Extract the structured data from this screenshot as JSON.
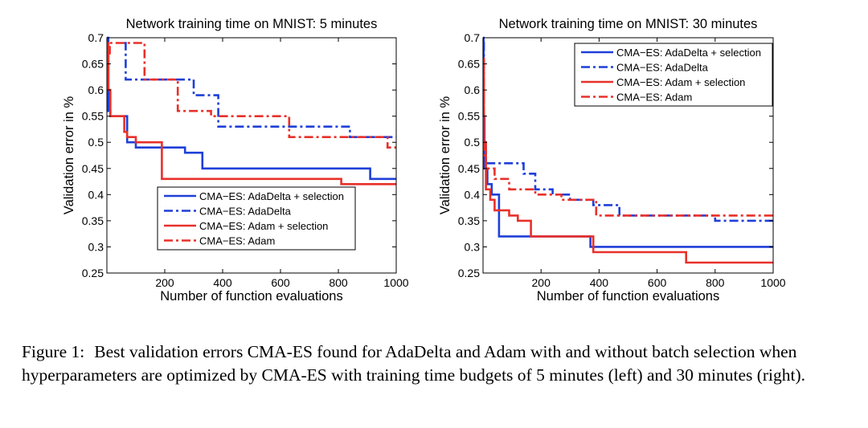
{
  "chart_data": [
    {
      "type": "line",
      "title": "Network training time on MNIST: 5 minutes",
      "xlabel": "Number of function evaluations",
      "ylabel": "Validation error in %",
      "xlim": [
        0,
        1000
      ],
      "ylim": [
        0.25,
        0.7
      ],
      "xticks": [
        200,
        400,
        600,
        800,
        1000
      ],
      "xtick_labels": [
        "200",
        "400",
        "600",
        "800",
        "1000"
      ],
      "yticks": [
        0.25,
        0.3,
        0.35,
        0.4,
        0.45,
        0.5,
        0.55,
        0.6,
        0.65,
        0.7
      ],
      "ytick_labels": [
        "0.25",
        "0.3",
        "0.35",
        "0.4",
        "0.45",
        "0.5",
        "0.55",
        "0.6",
        "0.65",
        "0.7"
      ],
      "grid": false,
      "legend_position": "lower-middle",
      "series": [
        {
          "name": "CMA−ES: AdaDelta + selection",
          "color": "#1f3fd8",
          "style": "solid",
          "x": [
            0,
            5,
            12,
            20,
            70,
            100,
            270,
            330,
            910,
            1000
          ],
          "y": [
            0.7,
            0.56,
            0.55,
            0.55,
            0.5,
            0.49,
            0.48,
            0.45,
            0.43,
            0.43
          ]
        },
        {
          "name": "CMA−ES: AdaDelta",
          "color": "#1f3fd8",
          "style": "dashdot",
          "x": [
            60,
            65,
            300,
            385,
            840,
            1000
          ],
          "y": [
            0.69,
            0.62,
            0.59,
            0.53,
            0.51,
            0.51
          ]
        },
        {
          "name": "CMA−ES: Adam + selection",
          "color": "#e8302a",
          "style": "solid",
          "x": [
            0,
            5,
            12,
            60,
            70,
            100,
            190,
            810,
            1000
          ],
          "y": [
            0.69,
            0.6,
            0.55,
            0.52,
            0.51,
            0.5,
            0.43,
            0.42,
            0.42
          ]
        },
        {
          "name": "CMA−ES: Adam",
          "color": "#e8302a",
          "style": "dashdot",
          "x": [
            5,
            10,
            130,
            245,
            360,
            630,
            970,
            1000
          ],
          "y": [
            0.67,
            0.69,
            0.62,
            0.56,
            0.55,
            0.51,
            0.49,
            0.49
          ]
        }
      ]
    },
    {
      "type": "line",
      "title": "Network training time on MNIST: 30 minutes",
      "xlabel": "Number of function evaluations",
      "ylabel": "Validation error in %",
      "xlim": [
        0,
        1000
      ],
      "ylim": [
        0.25,
        0.7
      ],
      "xticks": [
        200,
        400,
        600,
        800,
        1000
      ],
      "xtick_labels": [
        "200",
        "400",
        "600",
        "800",
        "1000"
      ],
      "yticks": [
        0.25,
        0.3,
        0.35,
        0.4,
        0.45,
        0.5,
        0.55,
        0.6,
        0.65,
        0.7
      ],
      "ytick_labels": [
        "0.25",
        "0.3",
        "0.35",
        "0.4",
        "0.45",
        "0.5",
        "0.55",
        "0.6",
        "0.65",
        "0.7"
      ],
      "grid": false,
      "legend_position": "top-right",
      "series": [
        {
          "name": "CMA−ES: AdaDelta + selection",
          "color": "#1f3fd8",
          "style": "solid",
          "x": [
            0,
            2,
            5,
            15,
            30,
            55,
            370,
            1000
          ],
          "y": [
            0.7,
            0.55,
            0.45,
            0.42,
            0.4,
            0.32,
            0.3,
            0.3
          ]
        },
        {
          "name": "CMA−ES: AdaDelta",
          "color": "#1f3fd8",
          "style": "dashdot",
          "x": [
            0,
            3,
            10,
            60,
            140,
            180,
            240,
            300,
            380,
            470,
            800,
            1000
          ],
          "y": [
            0.69,
            0.5,
            0.46,
            0.46,
            0.44,
            0.41,
            0.4,
            0.39,
            0.38,
            0.36,
            0.35,
            0.35
          ]
        },
        {
          "name": "CMA−ES: Adam + selection",
          "color": "#e8302a",
          "style": "solid",
          "x": [
            0,
            3,
            10,
            25,
            40,
            90,
            120,
            165,
            380,
            700,
            1000
          ],
          "y": [
            0.66,
            0.5,
            0.41,
            0.39,
            0.37,
            0.36,
            0.35,
            0.32,
            0.29,
            0.27,
            0.27
          ]
        },
        {
          "name": "CMA−ES: Adam",
          "color": "#e8302a",
          "style": "dashdot",
          "x": [
            0,
            3,
            10,
            40,
            90,
            180,
            270,
            390,
            1000
          ],
          "y": [
            0.6,
            0.47,
            0.45,
            0.43,
            0.41,
            0.4,
            0.39,
            0.36,
            0.36
          ]
        }
      ]
    }
  ],
  "caption": {
    "label": "Figure 1:",
    "text": "Best validation errors CMA-ES found for AdaDelta and Adam with and without batch selection when hyperparameters are optimized by CMA-ES with training time budgets of 5 minutes (left) and 30 minutes (right)."
  }
}
